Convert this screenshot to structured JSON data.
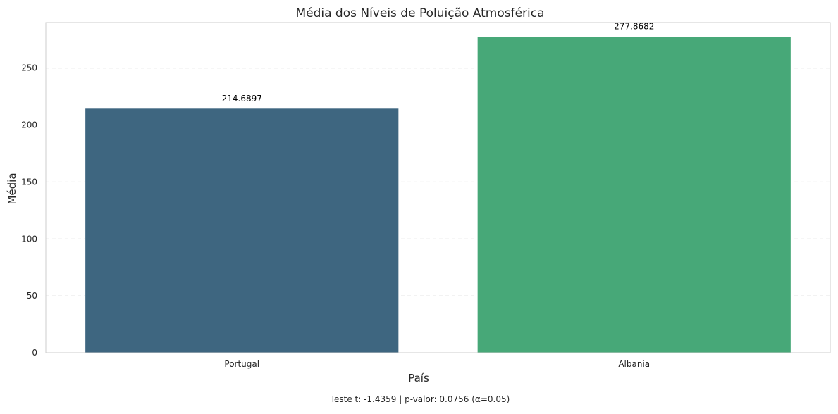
{
  "chart_data": {
    "type": "bar",
    "title": "Média dos Níveis de Poluição Atmosférica",
    "xlabel": "País",
    "ylabel": "Média",
    "categories": [
      "Portugal",
      "Albania"
    ],
    "values": [
      214.6897,
      277.8682
    ],
    "value_labels": [
      "214.6897",
      "277.8682"
    ],
    "bar_colors": [
      "#3e6680",
      "#47a878"
    ],
    "ylim": [
      0,
      290
    ],
    "yticks": [
      0,
      50,
      100,
      150,
      200,
      250
    ],
    "grid": "horizontal-dashed",
    "legend": "none",
    "footnote": "Teste t: -1.4359 | p-valor: 0.0756 (α=0.05)"
  }
}
